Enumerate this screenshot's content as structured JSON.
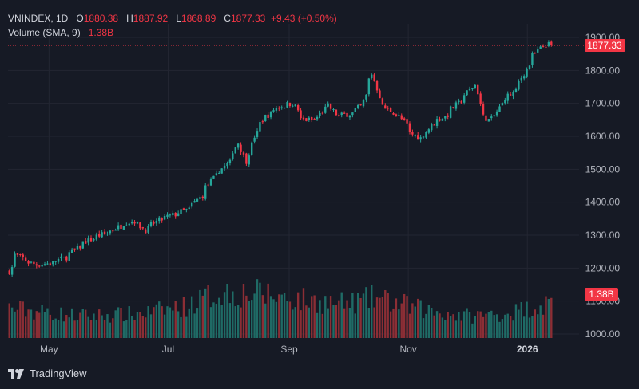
{
  "legend": {
    "symbol": "VNINDEX, 1D",
    "o_label": "O",
    "o_value": "1880.38",
    "h_label": "H",
    "h_value": "1887.92",
    "l_label": "L",
    "l_value": "1868.89",
    "c_label": "C",
    "c_value": "1877.33",
    "change": "+9.43 (+0.50%)",
    "volume_label": "Volume (SMA, 9)",
    "volume_value": "1.38B"
  },
  "badges": {
    "price": "1877.33",
    "volume": "1.38B"
  },
  "brand": "TradingView",
  "colors": {
    "background": "#161a25",
    "up": "#26a69a",
    "down": "#f23645",
    "text": "#b2b5be",
    "grid": "#232632"
  },
  "chart_data": {
    "type": "candlestick",
    "ylim": [
      1000,
      1900
    ],
    "yticks": [
      "1900.00",
      "1800.00",
      "1700.00",
      "1600.00",
      "1500.00",
      "1400.00",
      "1300.00",
      "1200.00",
      "1100.00",
      "1000.00"
    ],
    "xticks": [
      "May",
      "Jul",
      "Sep",
      "Nov",
      "2026"
    ],
    "x_start": "2025-04-10",
    "x_end": "2026-01-14",
    "last_price": 1877.33,
    "close_path": [
      [
        "2025-04-10",
        1190
      ],
      [
        "2025-04-14",
        1240
      ],
      [
        "2025-04-18",
        1225
      ],
      [
        "2025-04-24",
        1210
      ],
      [
        "2025-05-02",
        1215
      ],
      [
        "2025-05-10",
        1235
      ],
      [
        "2025-05-18",
        1275
      ],
      [
        "2025-05-25",
        1295
      ],
      [
        "2025-06-01",
        1310
      ],
      [
        "2025-06-08",
        1335
      ],
      [
        "2025-06-14",
        1345
      ],
      [
        "2025-06-19",
        1315
      ],
      [
        "2025-06-26",
        1345
      ],
      [
        "2025-07-05",
        1365
      ],
      [
        "2025-07-12",
        1380
      ],
      [
        "2025-07-18",
        1420
      ],
      [
        "2025-07-25",
        1480
      ],
      [
        "2025-08-01",
        1520
      ],
      [
        "2025-08-06",
        1580
      ],
      [
        "2025-08-10",
        1500
      ],
      [
        "2025-08-14",
        1600
      ],
      [
        "2025-08-20",
        1660
      ],
      [
        "2025-08-27",
        1690
      ],
      [
        "2025-09-03",
        1700
      ],
      [
        "2025-09-08",
        1650
      ],
      [
        "2025-09-15",
        1650
      ],
      [
        "2025-09-21",
        1700
      ],
      [
        "2025-09-26",
        1660
      ],
      [
        "2025-10-03",
        1670
      ],
      [
        "2025-10-08",
        1690
      ],
      [
        "2025-10-14",
        1790
      ],
      [
        "2025-10-18",
        1700
      ],
      [
        "2025-10-22",
        1680
      ],
      [
        "2025-10-28",
        1660
      ],
      [
        "2025-11-03",
        1610
      ],
      [
        "2025-11-08",
        1590
      ],
      [
        "2025-11-14",
        1640
      ],
      [
        "2025-11-20",
        1660
      ],
      [
        "2025-11-27",
        1700
      ],
      [
        "2025-12-03",
        1740
      ],
      [
        "2025-12-07",
        1770
      ],
      [
        "2025-12-10",
        1660
      ],
      [
        "2025-12-14",
        1640
      ],
      [
        "2025-12-20",
        1710
      ],
      [
        "2025-12-27",
        1740
      ],
      [
        "2026-01-03",
        1830
      ],
      [
        "2026-01-10",
        1880
      ],
      [
        "2026-01-14",
        1877.33
      ]
    ],
    "volume_path": [
      [
        "2025-04-10",
        75
      ],
      [
        "2025-05-15",
        55
      ],
      [
        "2025-06-15",
        60
      ],
      [
        "2025-07-10",
        80
      ],
      [
        "2025-07-28",
        115
      ],
      [
        "2025-08-20",
        110
      ],
      [
        "2025-09-08",
        95
      ],
      [
        "2025-10-01",
        85
      ],
      [
        "2025-10-15",
        100
      ],
      [
        "2025-11-10",
        70
      ],
      [
        "2025-12-01",
        55
      ],
      [
        "2025-12-20",
        60
      ],
      [
        "2026-01-14",
        88
      ]
    ]
  }
}
